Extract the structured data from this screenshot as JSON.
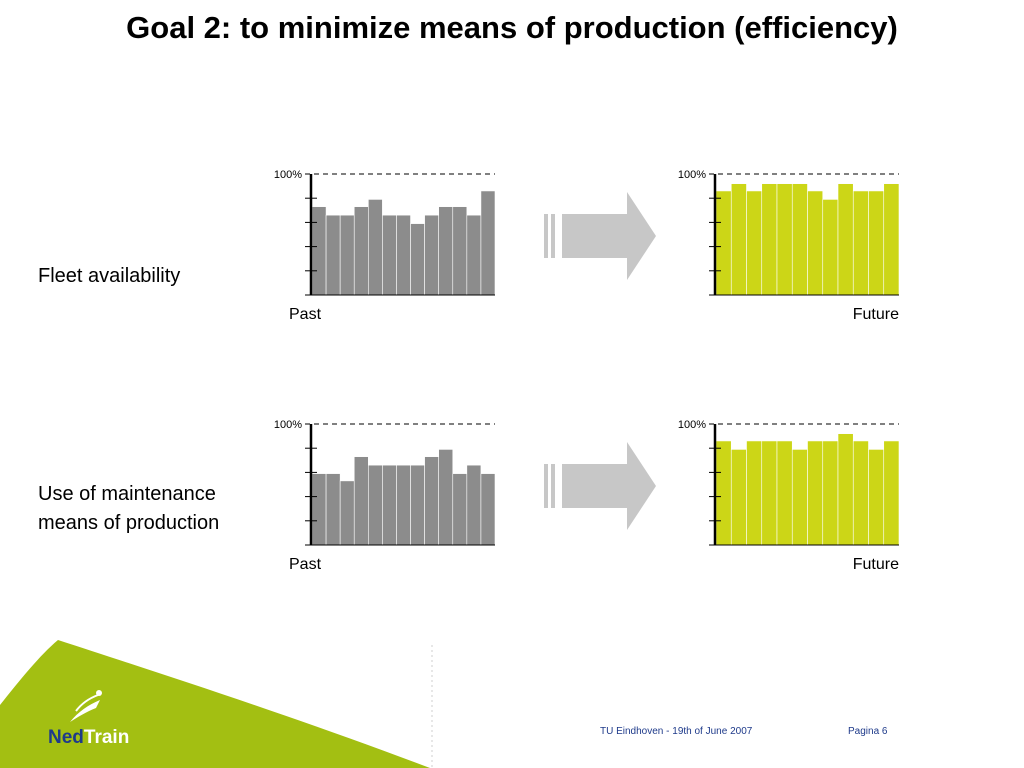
{
  "slide": {
    "title": "Goal 2: to minimize means of production (efficiency)",
    "footer_center": "TU Eindhoven - 19th of June 2007",
    "footer_page": "Pagina 6",
    "logo_part1": "Ned",
    "logo_part2": "Train"
  },
  "rows": [
    {
      "label_lines": [
        "Fleet availability"
      ]
    },
    {
      "label_lines": [
        "Use of maintenance",
        "means of production"
      ]
    }
  ],
  "colors": {
    "past": "#8c8c8c",
    "future": "#ccd617",
    "arrow": "#c7c7c7",
    "brand_green": "#a3bf12",
    "brand_blue": "#1e3a8a"
  },
  "chart_data": [
    {
      "type": "bar",
      "name": "Fleet availability - Past",
      "xlabel": "Past",
      "ylabel_tick": "100%",
      "ylim": [
        0,
        100
      ],
      "values": [
        73,
        66,
        66,
        73,
        79,
        66,
        66,
        59,
        66,
        73,
        73,
        66,
        86
      ]
    },
    {
      "type": "bar",
      "name": "Fleet availability - Future",
      "xlabel": "Future",
      "ylabel_tick": "100%",
      "ylim": [
        0,
        100
      ],
      "values": [
        86,
        92,
        86,
        92,
        92,
        92,
        86,
        79,
        92,
        86,
        86,
        92
      ]
    },
    {
      "type": "bar",
      "name": "Use of maintenance means of production - Past",
      "xlabel": "Past",
      "ylabel_tick": "100%",
      "ylim": [
        0,
        100
      ],
      "values": [
        59,
        59,
        53,
        73,
        66,
        66,
        66,
        66,
        73,
        79,
        59,
        66,
        59
      ]
    },
    {
      "type": "bar",
      "name": "Use of maintenance means of production - Future",
      "xlabel": "Future",
      "ylabel_tick": "100%",
      "ylim": [
        0,
        100
      ],
      "values": [
        86,
        79,
        86,
        86,
        86,
        79,
        86,
        86,
        92,
        86,
        79,
        86
      ]
    }
  ]
}
